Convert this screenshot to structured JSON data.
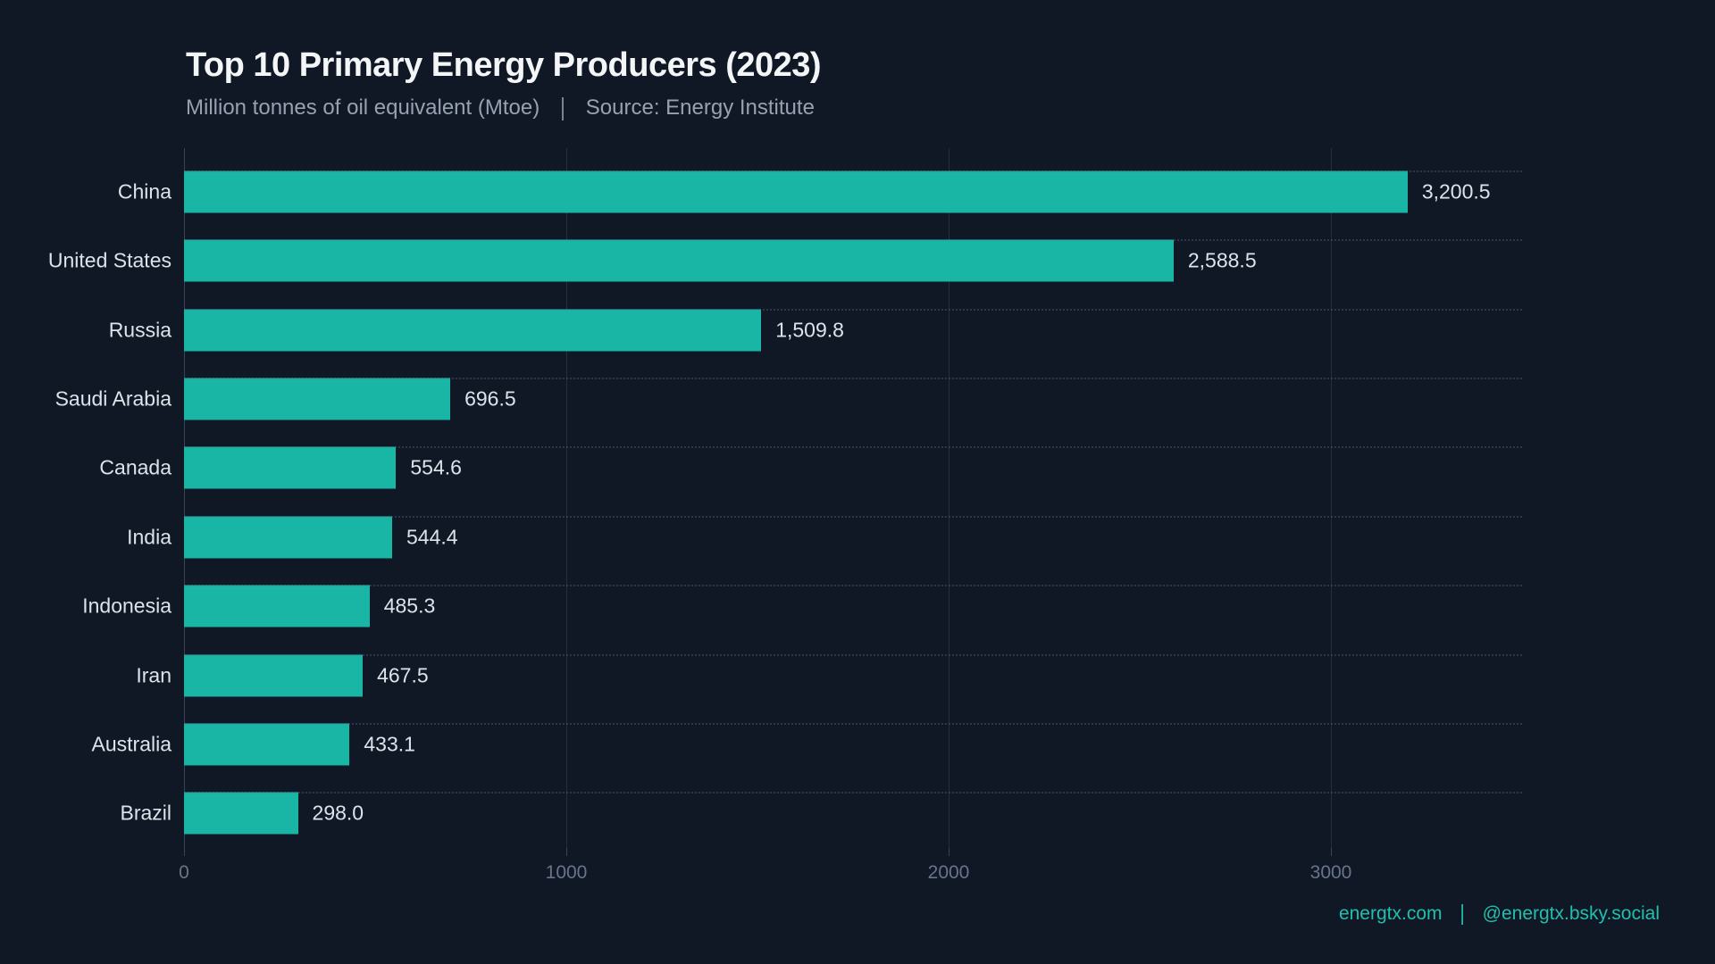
{
  "header": {
    "title": "Top 10 Primary Energy Producers (2023)",
    "subtitle_left": "Million tonnes of oil equivalent (Mtoe)",
    "separator": "|",
    "subtitle_right": "Source: Energy Institute"
  },
  "chart_data": {
    "type": "bar",
    "orientation": "horizontal",
    "title": "Top 10 Primary Energy Producers (2023)",
    "units": "Million tonnes of oil equivalent (Mtoe)",
    "source": "Energy Institute",
    "categories": [
      "China",
      "United States",
      "Russia",
      "Saudi Arabia",
      "Canada",
      "India",
      "Indonesia",
      "Iran",
      "Australia",
      "Brazil"
    ],
    "values": [
      3200.5,
      2588.5,
      1509.8,
      696.5,
      554.6,
      544.4,
      485.3,
      467.5,
      433.1,
      298.0
    ],
    "value_labels": [
      "3,200.5",
      "2,588.5",
      "1,509.8",
      "696.5",
      "554.6",
      "544.4",
      "485.3",
      "467.5",
      "433.1",
      "298.0"
    ],
    "xlim": [
      0,
      3500
    ],
    "xticks": [
      0,
      1000,
      2000,
      3000
    ],
    "xtick_labels": [
      "0",
      "1000",
      "2000",
      "3000"
    ],
    "grid": "vertical",
    "legend_position": "none"
  },
  "footer": {
    "left": "energtx.com",
    "separator": "|",
    "right": "@energtx.bsky.social"
  },
  "colors": {
    "background": "#101826",
    "bar": "#19b5a5",
    "title": "#f3f5f7",
    "subtitle": "#97a1b0",
    "category_label": "#dde3ea",
    "value_label": "#dde3ea",
    "tick_label": "#67748a",
    "footer": "#22bfae"
  }
}
